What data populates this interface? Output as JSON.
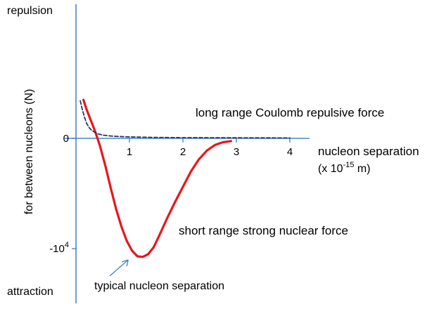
{
  "chart_data": {
    "type": "line",
    "title": "",
    "xlabel": "nucleon separation",
    "xlabel_units": "(x 10-15 m)",
    "ylabel": "for between nucleons (N)",
    "y_top_label": "repulsion",
    "y_bottom_label": "attraction",
    "xlim": [
      0,
      4.6
    ],
    "ylim": [
      -11000,
      3800
    ],
    "x_ticks": [
      "1",
      "2",
      "3",
      "4"
    ],
    "y_ticks": [
      {
        "label": "0",
        "value": 0
      },
      {
        "label": "-10",
        "sup": "4",
        "value": -10000
      }
    ],
    "grid": false,
    "annotations": [
      {
        "text": "typical nucleon separation",
        "arrow_to": [
          1.2,
          -10700
        ]
      }
    ],
    "series": [
      {
        "name": "short range strong nuclear force",
        "color": "#e8161b",
        "style": "solid",
        "x": [
          0.14,
          0.2,
          0.28,
          0.36,
          0.45,
          0.55,
          0.65,
          0.75,
          0.85,
          0.95,
          1.05,
          1.15,
          1.25,
          1.35,
          1.45,
          1.55,
          1.7,
          1.85,
          2.0,
          2.15,
          2.3,
          2.45,
          2.6,
          2.75,
          2.9
        ],
        "y": [
          3500,
          2600,
          1600,
          600,
          -700,
          -2500,
          -4500,
          -6400,
          -8000,
          -9300,
          -10200,
          -10700,
          -10750,
          -10500,
          -9900,
          -8900,
          -7300,
          -5800,
          -4400,
          -3000,
          -1900,
          -1100,
          -600,
          -350,
          -250
        ]
      },
      {
        "name": "long range Coulomb repulsive force",
        "color": "#1f3864",
        "style": "dashed",
        "x": [
          0.08,
          0.12,
          0.16,
          0.2,
          0.25,
          0.3,
          0.4,
          0.5,
          0.7,
          1.0,
          1.5,
          2.0,
          2.5,
          3.0,
          3.5,
          4.0
        ],
        "y": [
          3400,
          2600,
          1900,
          1350,
          950,
          700,
          420,
          290,
          190,
          130,
          85,
          65,
          55,
          50,
          45,
          40
        ]
      }
    ]
  },
  "colors": {
    "axis": "#4a86c8",
    "coulomb_label": "#2e8bd0",
    "strong_label": "#e8161b",
    "arrow": "#4a86c8"
  }
}
